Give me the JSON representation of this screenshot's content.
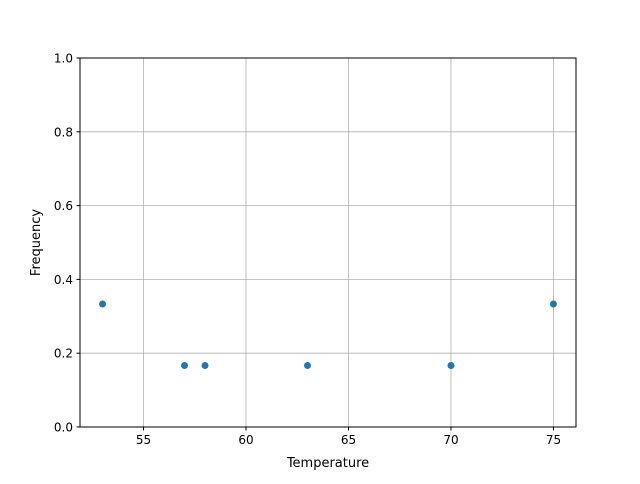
{
  "chart_data": {
    "type": "scatter",
    "title": "",
    "xlabel": "Temperature",
    "ylabel": "Frequency",
    "xlim": [
      51.9,
      76.1
    ],
    "ylim": [
      0,
      1.0
    ],
    "xticks": [
      55,
      60,
      65,
      70,
      75
    ],
    "yticks": [
      0.0,
      0.2,
      0.4,
      0.6,
      0.8,
      1.0
    ],
    "xtick_labels": [
      "55",
      "60",
      "65",
      "70",
      "75"
    ],
    "ytick_labels": [
      "0.0",
      "0.2",
      "0.4",
      "0.6",
      "0.8",
      "1.0"
    ],
    "grid": true,
    "color": "#1f77b4",
    "points": [
      {
        "x": 53,
        "y": 0.3333
      },
      {
        "x": 57,
        "y": 0.1667
      },
      {
        "x": 58,
        "y": 0.1667
      },
      {
        "x": 63,
        "y": 0.1667
      },
      {
        "x": 70,
        "y": 0.1667
      },
      {
        "x": 75,
        "y": 0.3333
      }
    ]
  }
}
